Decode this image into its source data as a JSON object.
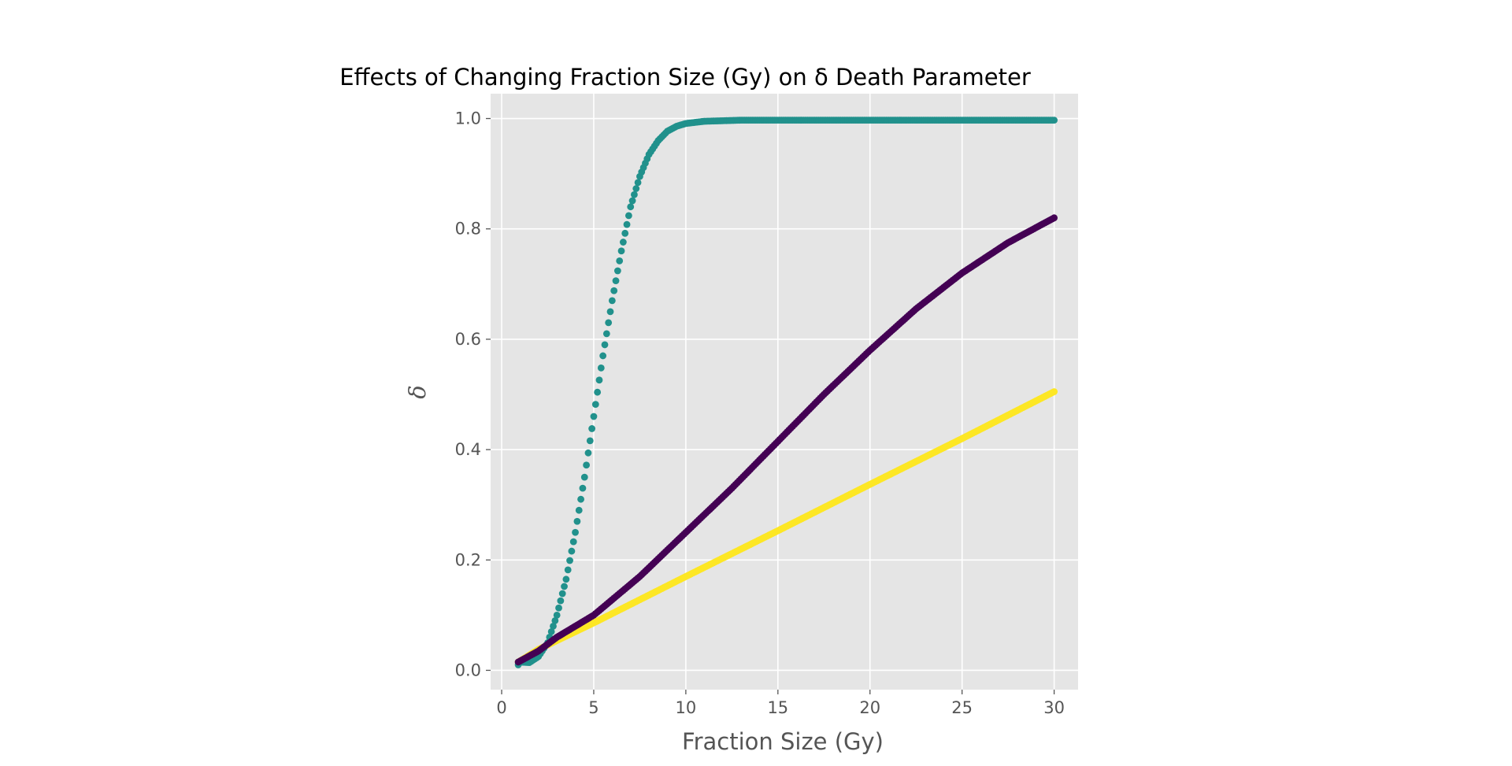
{
  "chart_data": {
    "type": "scatter",
    "title": "Effects of Changing Fraction Size (Gy) on δ Death Parameter",
    "xlabel": "Fraction Size (Gy)",
    "ylabel": "δ",
    "xlim": [
      -0.6,
      31.3
    ],
    "ylim": [
      -0.035,
      1.045
    ],
    "xticks": [
      0,
      5,
      10,
      15,
      20,
      25,
      30
    ],
    "yticks": [
      0.0,
      0.2,
      0.4,
      0.6,
      0.8,
      1.0
    ],
    "xtick_labels": [
      "0",
      "5",
      "10",
      "15",
      "20",
      "25",
      "30"
    ],
    "ytick_labels": [
      "0.0",
      "0.2",
      "0.4",
      "0.6",
      "0.8",
      "1.0"
    ],
    "grid": true,
    "legend": "none",
    "background_color": "#e5e5e5",
    "x_range_sampled": [
      0.9,
      30
    ],
    "x_step": 0.1,
    "series": [
      {
        "color": "#fde725",
        "points": [
          [
            0.9,
            0.015
          ],
          [
            2,
            0.038
          ],
          [
            5,
            0.086
          ],
          [
            10,
            0.17
          ],
          [
            15,
            0.253
          ],
          [
            20,
            0.337
          ],
          [
            25,
            0.42
          ],
          [
            30,
            0.505
          ]
        ]
      },
      {
        "color": "#21918c",
        "points": [
          [
            0.9,
            0.01
          ],
          [
            1,
            0.015
          ],
          [
            1.5,
            0.014
          ],
          [
            2,
            0.025
          ],
          [
            2.5,
            0.05
          ],
          [
            3,
            0.1
          ],
          [
            3.5,
            0.165
          ],
          [
            4,
            0.25
          ],
          [
            4.5,
            0.35
          ],
          [
            5,
            0.46
          ],
          [
            5.5,
            0.57
          ],
          [
            6,
            0.67
          ],
          [
            6.5,
            0.76
          ],
          [
            7,
            0.84
          ],
          [
            7.5,
            0.895
          ],
          [
            8,
            0.935
          ],
          [
            8.5,
            0.96
          ],
          [
            9,
            0.977
          ],
          [
            9.5,
            0.986
          ],
          [
            10,
            0.991
          ],
          [
            11,
            0.995
          ],
          [
            12,
            0.996
          ],
          [
            13,
            0.997
          ],
          [
            15,
            0.997
          ],
          [
            20,
            0.997
          ],
          [
            25,
            0.997
          ],
          [
            30,
            0.997
          ]
        ]
      },
      {
        "color": "#440154",
        "points": [
          [
            0.9,
            0.015
          ],
          [
            2,
            0.035
          ],
          [
            3,
            0.06
          ],
          [
            5,
            0.1
          ],
          [
            7.5,
            0.17
          ],
          [
            10,
            0.25
          ],
          [
            12.5,
            0.33
          ],
          [
            15,
            0.415
          ],
          [
            17.5,
            0.5
          ],
          [
            20,
            0.58
          ],
          [
            22.5,
            0.655
          ],
          [
            25,
            0.72
          ],
          [
            27.5,
            0.775
          ],
          [
            30,
            0.82
          ]
        ]
      }
    ]
  }
}
